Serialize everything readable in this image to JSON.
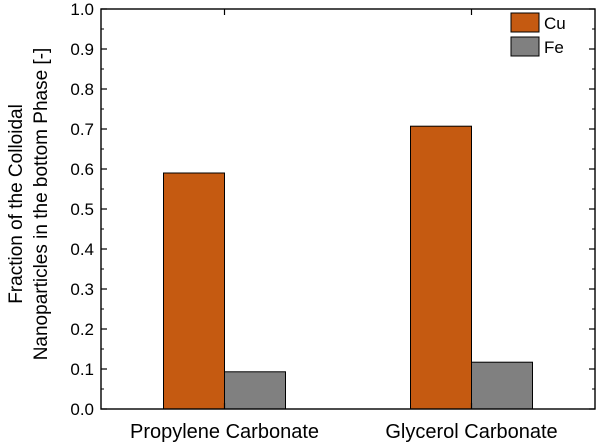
{
  "chart_data": {
    "type": "bar",
    "categories": [
      "Propylene Carbonate",
      "Glycerol Carbonate"
    ],
    "series": [
      {
        "name": "Cu",
        "values": [
          0.59,
          0.707
        ],
        "color": "#c55a11"
      },
      {
        "name": "Fe",
        "values": [
          0.093,
          0.117
        ],
        "color": "#808080"
      }
    ],
    "title": "",
    "xlabel": "",
    "ylabel_lines": [
      "Fraction of the Colloidal",
      "Nanoparticles in the bottom Phase [-]"
    ],
    "ylim": [
      0,
      1.0
    ],
    "yticks": [
      "0.0",
      "0.1",
      "0.2",
      "0.3",
      "0.4",
      "0.5",
      "0.6",
      "0.7",
      "0.8",
      "0.9",
      "1.0"
    ],
    "grid": false,
    "legend": "top-right"
  }
}
